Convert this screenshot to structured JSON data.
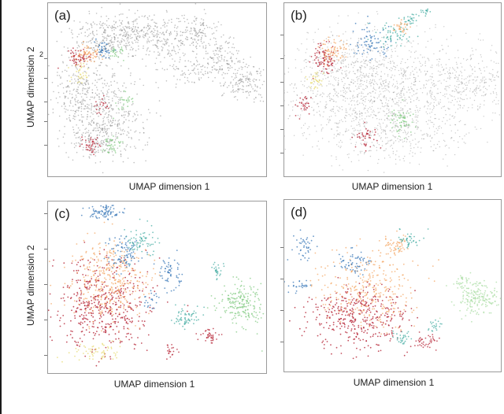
{
  "colors": {
    "gray": "#8a8a8a",
    "red": "#b2182b",
    "orange": "#f4a460",
    "darkorange": "#e66101",
    "yellow": "#e6d96a",
    "green": "#7fc97f",
    "teal": "#3ea99f",
    "blue": "#2c6fb3",
    "lightgreen": "#a6dba0"
  },
  "chart_data": [
    {
      "type": "scatter",
      "panel_label": "(a)",
      "xlabel": "UMAP dimension 1",
      "ylabel": "UMAP dimension 2",
      "y_tick_labels": [
        "2"
      ],
      "grid": false,
      "description_series": [
        "gray background points",
        "colored clusters"
      ]
    },
    {
      "type": "scatter",
      "panel_label": "(b)",
      "xlabel": "UMAP dimension 1",
      "ylabel": "",
      "grid": false
    },
    {
      "type": "scatter",
      "panel_label": "(c)",
      "xlabel": "UMAP dimension 1",
      "ylabel": "UMAP dimension 2",
      "grid": false
    },
    {
      "type": "scatter",
      "panel_label": "(d)",
      "xlabel": "UMAP dimension 1",
      "ylabel": "",
      "grid": false
    }
  ]
}
